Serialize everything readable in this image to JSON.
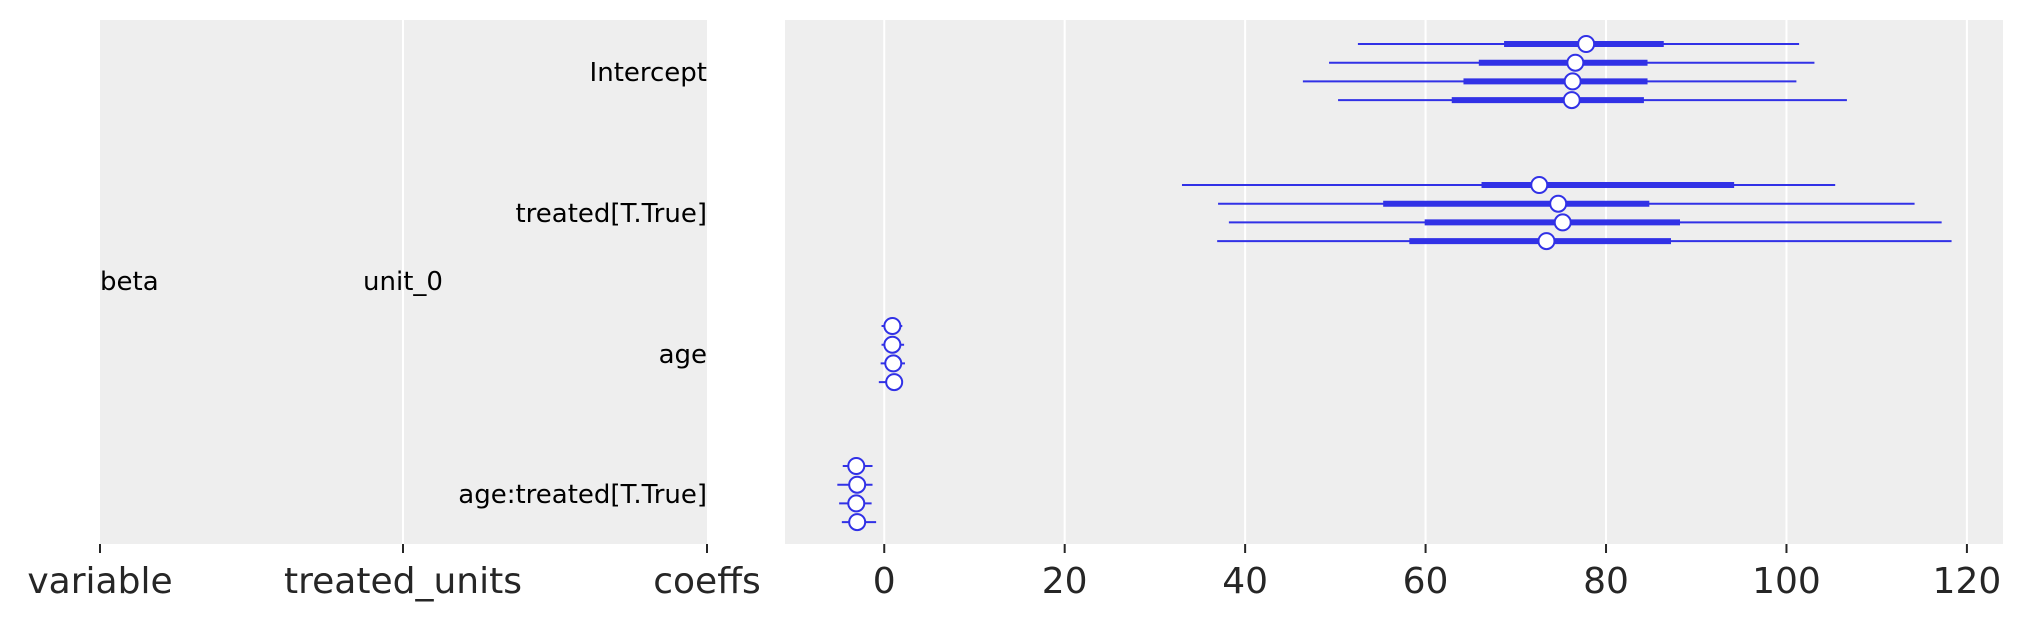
{
  "chart_data": {
    "type": "forest",
    "label_columns": [
      "variable",
      "treated_units",
      "coeffs"
    ],
    "variable_label": "beta",
    "unit_label": "unit_0",
    "x_ticks": [
      0,
      20,
      40,
      60,
      80,
      100,
      120
    ],
    "x_range": [
      -11,
      124
    ],
    "grid": true,
    "series_color": "#3131e6",
    "background": "#eeeeee",
    "groups": [
      {
        "name": "Intercept",
        "chains": [
          {
            "mean": 77.8,
            "hdi94": [
              52.5,
              101.4
            ],
            "hdi50": [
              68.7,
              86.4
            ]
          },
          {
            "mean": 76.6,
            "hdi94": [
              49.3,
              103.1
            ],
            "hdi50": [
              65.9,
              84.6
            ]
          },
          {
            "mean": 76.3,
            "hdi94": [
              46.4,
              101.1
            ],
            "hdi50": [
              64.2,
              84.6
            ]
          },
          {
            "mean": 76.2,
            "hdi94": [
              50.3,
              106.7
            ],
            "hdi50": [
              62.9,
              84.2
            ]
          }
        ]
      },
      {
        "name": "treated[T.True]",
        "chains": [
          {
            "mean": 72.6,
            "hdi94": [
              33.0,
              105.4
            ],
            "hdi50": [
              66.2,
              94.2
            ]
          },
          {
            "mean": 74.7,
            "hdi94": [
              37.0,
              114.2
            ],
            "hdi50": [
              55.3,
              84.8
            ]
          },
          {
            "mean": 75.2,
            "hdi94": [
              38.2,
              117.2
            ],
            "hdi50": [
              59.9,
              88.2
            ]
          },
          {
            "mean": 73.4,
            "hdi94": [
              36.9,
              118.3
            ],
            "hdi50": [
              58.2,
              87.2
            ]
          }
        ]
      },
      {
        "name": "age",
        "chains": [
          {
            "mean": 0.9,
            "hdi94": [
              -0.3,
              2.0
            ],
            "hdi50": [
              0.5,
              1.3
            ]
          },
          {
            "mean": 0.9,
            "hdi94": [
              -0.3,
              2.2
            ],
            "hdi50": [
              0.5,
              1.3
            ]
          },
          {
            "mean": 1.0,
            "hdi94": [
              -0.4,
              2.3
            ],
            "hdi50": [
              0.6,
              1.4
            ]
          },
          {
            "mean": 1.1,
            "hdi94": [
              -0.6,
              2.0
            ],
            "hdi50": [
              0.7,
              1.5
            ]
          }
        ]
      },
      {
        "name": "age:treated[T.True]",
        "chains": [
          {
            "mean": -3.1,
            "hdi94": [
              -4.6,
              -1.3
            ],
            "hdi50": [
              -3.6,
              -2.6
            ]
          },
          {
            "mean": -3.0,
            "hdi94": [
              -5.2,
              -1.3
            ],
            "hdi50": [
              -3.5,
              -2.5
            ]
          },
          {
            "mean": -3.1,
            "hdi94": [
              -5.0,
              -1.4
            ],
            "hdi50": [
              -3.6,
              -2.6
            ]
          },
          {
            "mean": -3.0,
            "hdi94": [
              -4.7,
              -0.9
            ],
            "hdi50": [
              -3.5,
              -2.5
            ]
          }
        ]
      }
    ]
  }
}
